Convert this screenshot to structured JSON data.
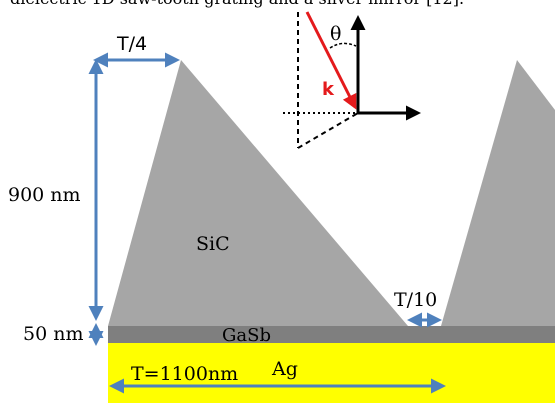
{
  "caption_fragment": "dielectric 1D saw-tooth grating and a silver mirror [12].",
  "materials": {
    "sic": "SiC",
    "gasb": "GaSb",
    "ag": "Ag"
  },
  "dimensions": {
    "quarter_period": "T/4",
    "tenth_period": "T/10",
    "height": "900 nm",
    "gasb_thickness": "50 nm",
    "period": "T=1100nm"
  },
  "incidence": {
    "angle_symbol": "θ",
    "wavevector": "k"
  },
  "colors": {
    "sic": "#a6a6a6",
    "gasb": "#7f7f7f",
    "ag": "#ffff00",
    "dimension_arrow": "#4f81bd",
    "wavevector": "#e41a1c",
    "axes": "#000000"
  }
}
